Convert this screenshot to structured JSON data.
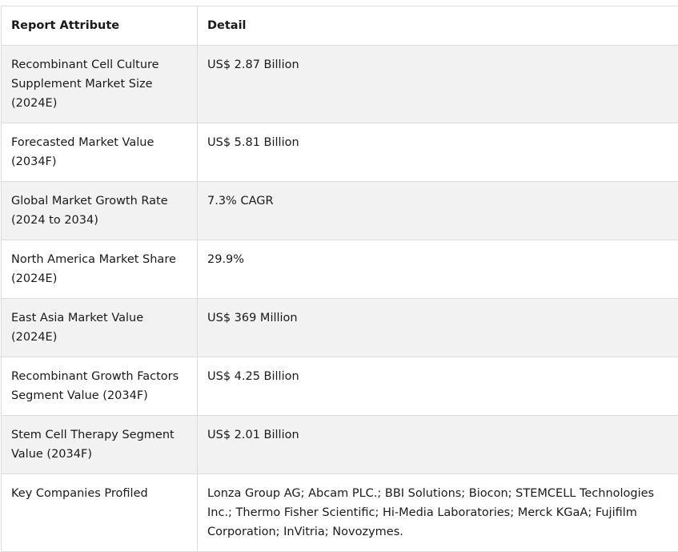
{
  "table": {
    "headers": {
      "attribute": "Report Attribute",
      "detail": "Detail"
    },
    "rows": [
      {
        "attribute": "Recombinant Cell Culture Supplement Market Size (2024E)",
        "detail": "US$ 2.87 Billion"
      },
      {
        "attribute": "Forecasted Market Value (2034F)",
        "detail": "US$ 5.81 Billion"
      },
      {
        "attribute": "Global Market Growth Rate (2024 to 2034)",
        "detail": "7.3% CAGR"
      },
      {
        "attribute": "North America Market Share (2024E)",
        "detail": "29.9%"
      },
      {
        "attribute": "East Asia Market Value (2024E)",
        "detail": "US$ 369 Million"
      },
      {
        "attribute": "Recombinant Growth Factors Segment Value (2034F)",
        "detail": "US$ 4.25 Billion"
      },
      {
        "attribute": "Stem Cell Therapy Segment Value (2034F)",
        "detail": "US$ 2.01 Billion"
      },
      {
        "attribute": "Key Companies Profiled",
        "detail": "Lonza Group AG; Abcam PLC.; BBI Solutions; Biocon; STEMCELL Technologies Inc.; Thermo Fisher Scientific; Hi-Media Laboratories; Merck KGaA; Fujifilm Corporation; InVitria; Novozymes."
      }
    ]
  }
}
